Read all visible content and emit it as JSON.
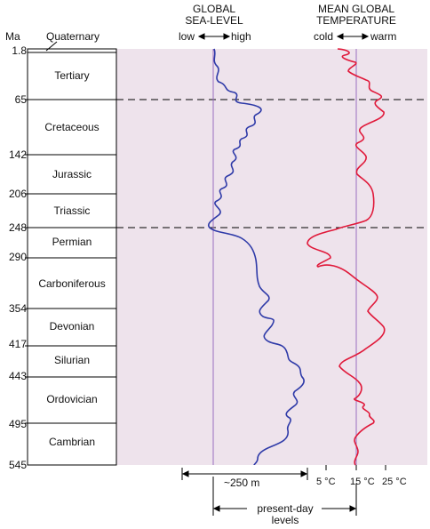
{
  "header": {
    "ma": "Ma",
    "quaternary": "Quaternary",
    "sea_level_title_1": "GLOBAL",
    "sea_level_title_2": "SEA-LEVEL",
    "sea_level_low": "low",
    "sea_level_high": "high",
    "temp_title_1": "MEAN GLOBAL",
    "temp_title_2": "TEMPERATURE",
    "temp_cold": "cold",
    "temp_warm": "warm"
  },
  "ages": [
    "1.8",
    "65",
    "142",
    "206",
    "248",
    "290",
    "354",
    "417",
    "443",
    "495",
    "545"
  ],
  "periods": [
    "Tertiary",
    "Cretaceous",
    "Jurassic",
    "Triassic",
    "Permian",
    "Carboniferous",
    "Devonian",
    "Silurian",
    "Ordovician",
    "Cambrian"
  ],
  "bottom": {
    "scale_250": "~250 m",
    "t5": "5 °C",
    "t15": "15 °C",
    "t25": "25 °C",
    "present_1": "present-day",
    "present_2": "levels"
  },
  "colors": {
    "panel": "#eee3ec",
    "sea_level_curve": "#2e3aa8",
    "temperature_curve": "#e0193a",
    "reference_line": "#9a6fc0"
  }
}
